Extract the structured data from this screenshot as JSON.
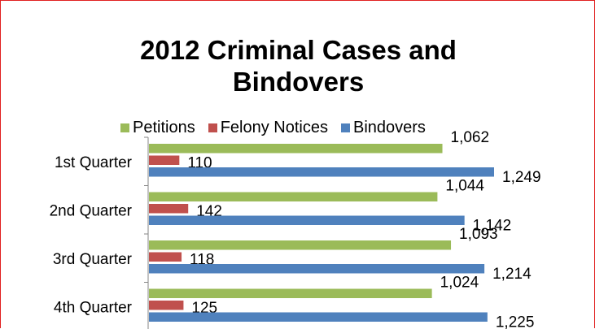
{
  "chart_data": {
    "type": "bar",
    "orientation": "horizontal",
    "title": "2012 Criminal Cases and Bindovers",
    "title_lines": [
      "2012 Criminal Cases and",
      "Bindovers"
    ],
    "categories": [
      "1st Quarter",
      "2nd Quarter",
      "3rd Quarter",
      "4th Quarter"
    ],
    "series": [
      {
        "name": "Petitions",
        "color": "#9bbb59",
        "values": [
          1062,
          1044,
          1093,
          1024
        ],
        "labels": [
          "1,062",
          "1,044",
          "1,093",
          "1,024"
        ]
      },
      {
        "name": "Felony Notices",
        "color": "#c0504d",
        "values": [
          110,
          142,
          118,
          125
        ],
        "labels": [
          "110",
          "142",
          "118",
          "125"
        ]
      },
      {
        "name": "Bindovers",
        "color": "#4f81bd",
        "values": [
          1249,
          1142,
          1214,
          1225
        ],
        "labels": [
          "1,249",
          "1,142",
          "1,214",
          "1,225"
        ]
      }
    ],
    "xlim": [
      0,
      1400
    ],
    "gridlines": false,
    "legend_position": "top",
    "axis_color": "#868686",
    "border_color": "#e02020"
  }
}
